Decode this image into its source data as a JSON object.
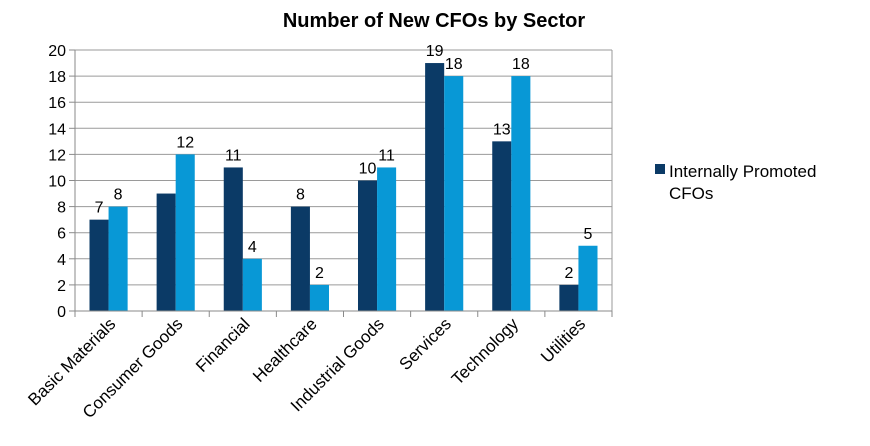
{
  "chart_data": {
    "type": "bar",
    "title": "Number of New CFOs by Sector",
    "categories": [
      "Basic Materials",
      "Consumer Goods",
      "Financial",
      "Healthcare",
      "Industrial Goods",
      "Services",
      "Technology",
      "Utilities"
    ],
    "series": [
      {
        "name": "Internally Promoted CFOs",
        "values": [
          7,
          9,
          11,
          8,
          10,
          19,
          13,
          2
        ],
        "color": "#0b3a66",
        "show_labels": [
          true,
          false,
          true,
          true,
          true,
          true,
          true,
          true
        ]
      },
      {
        "values": [
          8,
          12,
          4,
          2,
          11,
          18,
          18,
          5
        ],
        "color": "#0898d6",
        "show_labels": [
          true,
          true,
          true,
          true,
          true,
          true,
          true,
          true
        ]
      }
    ],
    "yticks": [
      0,
      2,
      4,
      6,
      8,
      10,
      12,
      14,
      16,
      18,
      20
    ],
    "ylim": [
      0,
      20
    ],
    "grid": true,
    "legend": {
      "position": "right",
      "label_lines": [
        "Internally Promoted",
        "CFOs"
      ]
    }
  }
}
